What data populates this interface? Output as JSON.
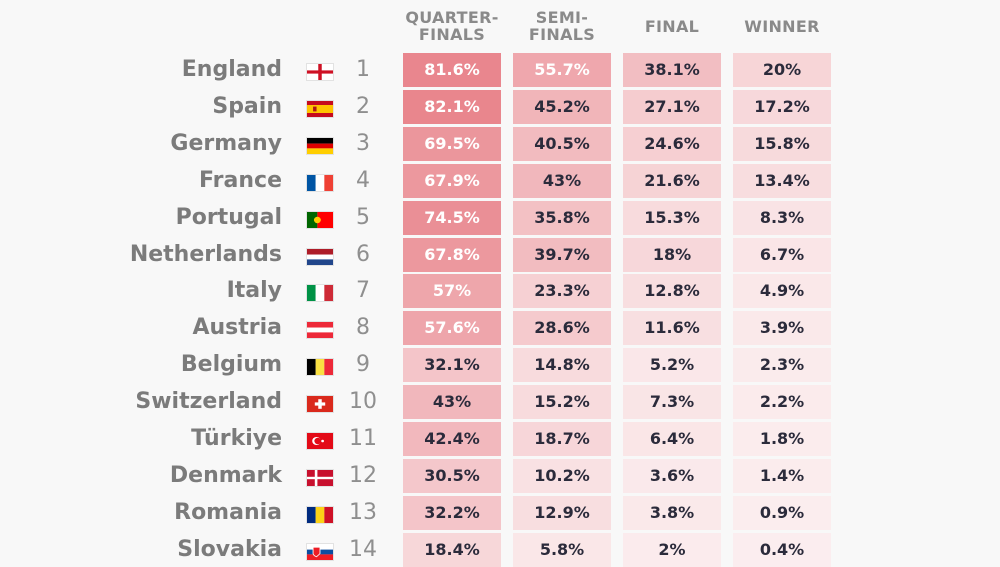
{
  "chart_data": {
    "type": "table",
    "columns": [
      "QUARTER-\nFINALS",
      "SEMI-\nFINALS",
      "FINAL",
      "WINNER"
    ],
    "colors": {
      "heat_high": "#e8828a",
      "heat_low": "#fbeeef",
      "header_text": "#8a8a8a",
      "team_text": "#7b7b7b",
      "cell_text": "#2b2b3b"
    },
    "rows": [
      {
        "team": "England",
        "flag": "england-flag",
        "rank": "1",
        "values": [
          "81.6%",
          "55.7%",
          "38.1%",
          "20%"
        ],
        "numbers": [
          81.6,
          55.7,
          38.1,
          20
        ]
      },
      {
        "team": "Spain",
        "flag": "spain-flag",
        "rank": "2",
        "values": [
          "82.1%",
          "45.2%",
          "27.1%",
          "17.2%"
        ],
        "numbers": [
          82.1,
          45.2,
          27.1,
          17.2
        ]
      },
      {
        "team": "Germany",
        "flag": "germany-flag",
        "rank": "3",
        "values": [
          "69.5%",
          "40.5%",
          "24.6%",
          "15.8%"
        ],
        "numbers": [
          69.5,
          40.5,
          24.6,
          15.8
        ]
      },
      {
        "team": "France",
        "flag": "france-flag",
        "rank": "4",
        "values": [
          "67.9%",
          "43%",
          "21.6%",
          "13.4%"
        ],
        "numbers": [
          67.9,
          43,
          21.6,
          13.4
        ]
      },
      {
        "team": "Portugal",
        "flag": "portugal-flag",
        "rank": "5",
        "values": [
          "74.5%",
          "35.8%",
          "15.3%",
          "8.3%"
        ],
        "numbers": [
          74.5,
          35.8,
          15.3,
          8.3
        ]
      },
      {
        "team": "Netherlands",
        "flag": "netherlands-flag",
        "rank": "6",
        "values": [
          "67.8%",
          "39.7%",
          "18%",
          "6.7%"
        ],
        "numbers": [
          67.8,
          39.7,
          18,
          6.7
        ]
      },
      {
        "team": "Italy",
        "flag": "italy-flag",
        "rank": "7",
        "values": [
          "57%",
          "23.3%",
          "12.8%",
          "4.9%"
        ],
        "numbers": [
          57,
          23.3,
          12.8,
          4.9
        ]
      },
      {
        "team": "Austria",
        "flag": "austria-flag",
        "rank": "8",
        "values": [
          "57.6%",
          "28.6%",
          "11.6%",
          "3.9%"
        ],
        "numbers": [
          57.6,
          28.6,
          11.6,
          3.9
        ]
      },
      {
        "team": "Belgium",
        "flag": "belgium-flag",
        "rank": "9",
        "values": [
          "32.1%",
          "14.8%",
          "5.2%",
          "2.3%"
        ],
        "numbers": [
          32.1,
          14.8,
          5.2,
          2.3
        ]
      },
      {
        "team": "Switzerland",
        "flag": "switzerland-flag",
        "rank": "10",
        "values": [
          "43%",
          "15.2%",
          "7.3%",
          "2.2%"
        ],
        "numbers": [
          43,
          15.2,
          7.3,
          2.2
        ]
      },
      {
        "team": "Türkiye",
        "flag": "turkiye-flag",
        "rank": "11",
        "values": [
          "42.4%",
          "18.7%",
          "6.4%",
          "1.8%"
        ],
        "numbers": [
          42.4,
          18.7,
          6.4,
          1.8
        ]
      },
      {
        "team": "Denmark",
        "flag": "denmark-flag",
        "rank": "12",
        "values": [
          "30.5%",
          "10.2%",
          "3.6%",
          "1.4%"
        ],
        "numbers": [
          30.5,
          10.2,
          3.6,
          1.4
        ]
      },
      {
        "team": "Romania",
        "flag": "romania-flag",
        "rank": "13",
        "values": [
          "32.2%",
          "12.9%",
          "3.8%",
          "0.9%"
        ],
        "numbers": [
          32.2,
          12.9,
          3.8,
          0.9
        ]
      },
      {
        "team": "Slovakia",
        "flag": "slovakia-flag",
        "rank": "14",
        "values": [
          "18.4%",
          "5.8%",
          "2%",
          "0.4%"
        ],
        "numbers": [
          18.4,
          5.8,
          2,
          0.4
        ]
      }
    ]
  }
}
